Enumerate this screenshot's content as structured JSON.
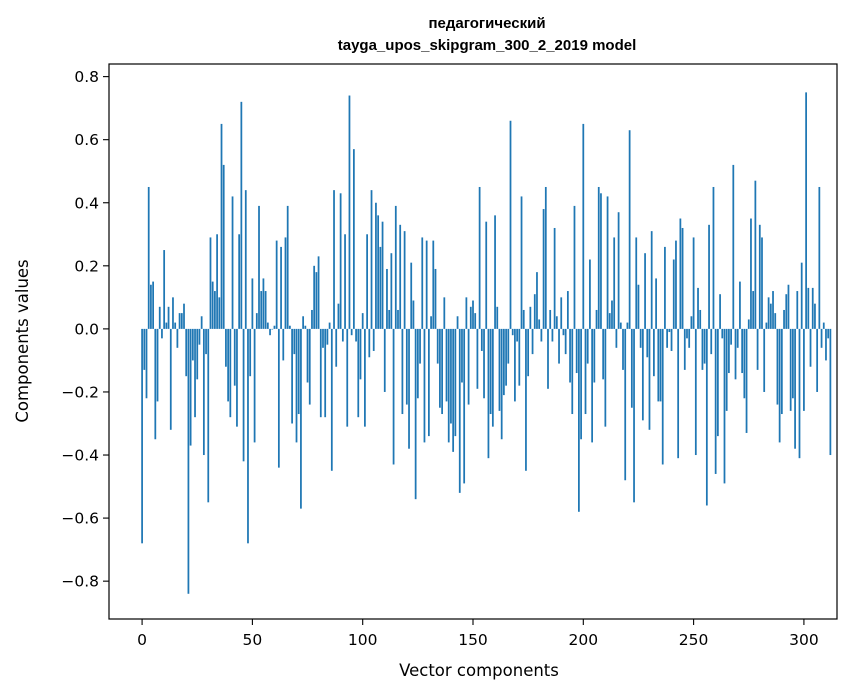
{
  "chart_data": {
    "type": "bar",
    "title_line1": "педагогический",
    "title_line2": "tayga_upos_skipgram_300_2_2019 model",
    "xlabel": "Vector components",
    "ylabel": "Components values",
    "xlim": [
      -15,
      315
    ],
    "ylim": [
      -0.92,
      0.84
    ],
    "xticks": [
      0,
      50,
      100,
      150,
      200,
      250,
      300
    ],
    "xtick_labels": [
      "0",
      "50",
      "100",
      "150",
      "200",
      "250",
      "300"
    ],
    "yticks": [
      -0.8,
      -0.6,
      -0.4,
      -0.2,
      0.0,
      0.2,
      0.4,
      0.6,
      0.8
    ],
    "ytick_labels": [
      "−0.8",
      "−0.6",
      "−0.4",
      "−0.2",
      "0.0",
      "0.2",
      "0.4",
      "0.6",
      "0.8"
    ],
    "bar_color": "#1f77b4",
    "grid": false,
    "values": [
      -0.68,
      -0.13,
      -0.22,
      0.45,
      0.14,
      0.15,
      -0.35,
      -0.23,
      0.07,
      -0.03,
      0.25,
      0.02,
      0.07,
      -0.32,
      0.1,
      0.02,
      -0.06,
      0.05,
      0.05,
      0.08,
      -0.15,
      -0.84,
      -0.37,
      -0.1,
      -0.28,
      -0.16,
      -0.05,
      0.04,
      -0.4,
      -0.08,
      -0.55,
      0.29,
      0.15,
      0.12,
      0.3,
      0.1,
      0.65,
      0.52,
      -0.12,
      -0.23,
      -0.28,
      0.42,
      -0.18,
      -0.31,
      0.3,
      0.72,
      -0.42,
      0.44,
      -0.68,
      -0.15,
      0.16,
      -0.36,
      0.05,
      0.39,
      0.12,
      0.16,
      0.12,
      0.02,
      -0.02,
      0.0,
      0.01,
      0.28,
      -0.44,
      0.26,
      -0.1,
      0.29,
      0.39,
      0.01,
      -0.3,
      -0.08,
      -0.36,
      -0.27,
      -0.57,
      0.04,
      0.01,
      -0.17,
      -0.24,
      0.06,
      0.2,
      0.18,
      0.23,
      -0.28,
      -0.06,
      -0.28,
      -0.05,
      0.02,
      -0.45,
      0.44,
      -0.12,
      0.08,
      0.43,
      -0.04,
      0.3,
      -0.31,
      0.74,
      -0.02,
      0.57,
      -0.04,
      -0.28,
      -0.16,
      0.05,
      -0.31,
      0.3,
      -0.09,
      0.44,
      -0.07,
      0.4,
      0.36,
      0.26,
      0.34,
      -0.2,
      0.19,
      0.06,
      0.24,
      -0.43,
      0.39,
      0.06,
      0.33,
      -0.27,
      0.31,
      -0.24,
      -0.38,
      0.21,
      0.09,
      -0.54,
      -0.22,
      -0.11,
      0.29,
      -0.36,
      0.28,
      -0.34,
      0.04,
      0.28,
      0.19,
      -0.11,
      -0.25,
      -0.27,
      0.1,
      -0.23,
      -0.36,
      -0.3,
      -0.39,
      -0.34,
      0.04,
      -0.52,
      -0.17,
      -0.49,
      0.1,
      -0.24,
      0.07,
      0.09,
      0.05,
      -0.19,
      0.45,
      -0.07,
      -0.22,
      0.34,
      -0.41,
      -0.27,
      -0.31,
      0.36,
      0.07,
      -0.26,
      -0.35,
      -0.21,
      -0.18,
      -0.11,
      0.66,
      -0.02,
      -0.23,
      -0.04,
      -0.18,
      0.42,
      0.06,
      -0.45,
      -0.15,
      0.07,
      -0.08,
      0.11,
      0.18,
      0.03,
      -0.04,
      0.38,
      0.45,
      -0.19,
      0.06,
      -0.04,
      0.32,
      0.04,
      -0.11,
      0.1,
      -0.02,
      -0.08,
      0.12,
      -0.17,
      -0.27,
      0.39,
      -0.14,
      -0.58,
      -0.35,
      0.65,
      -0.27,
      -0.11,
      0.22,
      -0.36,
      -0.17,
      0.06,
      0.45,
      0.43,
      -0.16,
      -0.31,
      0.42,
      0.05,
      0.09,
      0.29,
      -0.06,
      0.37,
      0.02,
      -0.13,
      -0.48,
      0.02,
      0.63,
      -0.25,
      -0.55,
      0.29,
      0.14,
      -0.06,
      -0.29,
      0.24,
      -0.09,
      -0.32,
      0.31,
      -0.15,
      0.16,
      -0.23,
      -0.23,
      -0.43,
      0.26,
      -0.06,
      -0.01,
      -0.07,
      0.22,
      0.28,
      -0.41,
      0.35,
      0.32,
      -0.13,
      -0.03,
      -0.06,
      0.04,
      0.29,
      -0.4,
      0.13,
      0.06,
      -0.13,
      -0.11,
      -0.56,
      0.33,
      -0.08,
      0.45,
      -0.46,
      -0.34,
      0.11,
      -0.03,
      -0.49,
      -0.26,
      -0.14,
      -0.05,
      0.52,
      -0.16,
      -0.06,
      0.15,
      -0.14,
      -0.22,
      -0.33,
      0.03,
      0.35,
      0.12,
      0.47,
      -0.13,
      0.33,
      0.29,
      -0.2,
      0.02,
      0.1,
      0.08,
      0.12,
      0.05,
      -0.24,
      -0.36,
      -0.27,
      0.06,
      0.11,
      0.14,
      -0.26,
      -0.22,
      -0.38,
      0.12,
      -0.41,
      0.21,
      -0.26,
      0.75,
      0.13,
      -0.12,
      0.13,
      0.08,
      -0.2,
      0.45,
      -0.06,
      0.02,
      -0.1,
      -0.03,
      -0.4
    ]
  }
}
